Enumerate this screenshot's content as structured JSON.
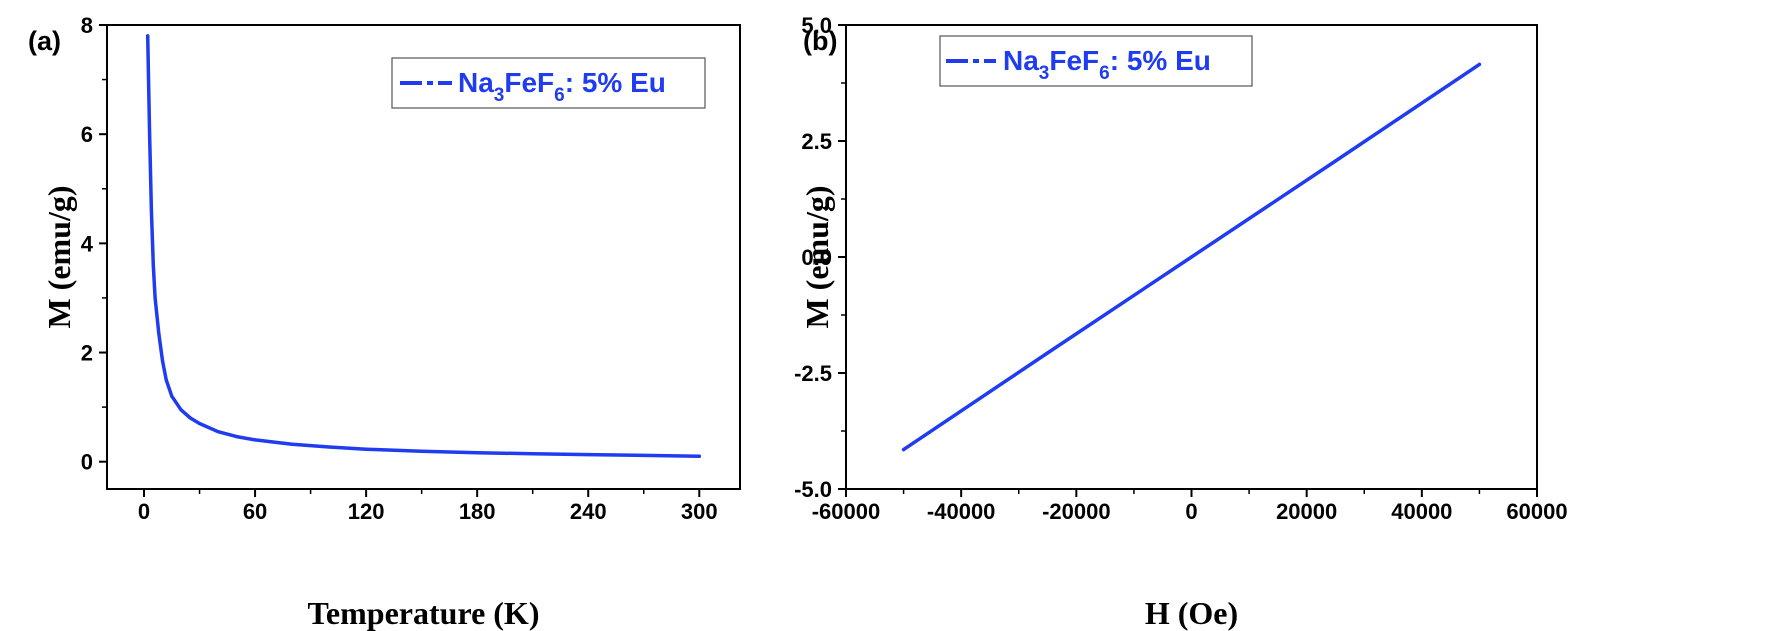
{
  "colors": {
    "series": "#1f3cf0",
    "axes": "#000000",
    "legend_border": "#555555"
  },
  "chart_data": [
    {
      "type": "line",
      "panel_label": "(a)",
      "xlabel": "Temperature (K)",
      "ylabel": "M (emu/g)",
      "xlim": [
        -20,
        322
      ],
      "ylim": [
        -0.5,
        8
      ],
      "xticks": [
        0,
        60,
        120,
        180,
        240,
        300
      ],
      "xtick_labels": [
        "0",
        "60",
        "120",
        "180",
        "240",
        "300"
      ],
      "yticks": [
        0,
        2,
        4,
        6,
        8
      ],
      "ytick_labels": [
        "0",
        "2",
        "4",
        "6",
        "8"
      ],
      "legend_position": "top-right",
      "legend": {
        "prefix": "Na",
        "sub1": "3",
        "mid": "FeF",
        "sub2": "6",
        "suffix": ": 5% Eu"
      },
      "series": [
        {
          "name": "Na3FeF6: 5% Eu",
          "x": [
            2,
            3,
            4,
            5,
            6,
            8,
            10,
            12,
            15,
            20,
            25,
            30,
            40,
            50,
            60,
            80,
            100,
            120,
            150,
            180,
            210,
            240,
            270,
            300
          ],
          "y": [
            7.8,
            6.0,
            4.6,
            3.6,
            3.0,
            2.35,
            1.85,
            1.5,
            1.2,
            0.95,
            0.8,
            0.7,
            0.55,
            0.46,
            0.4,
            0.32,
            0.27,
            0.23,
            0.19,
            0.165,
            0.145,
            0.13,
            0.115,
            0.1
          ]
        }
      ]
    },
    {
      "type": "line",
      "panel_label": "(b)",
      "xlabel": "H (Oe)",
      "ylabel": "M (emu/g)",
      "xlim": [
        -60000,
        60000
      ],
      "ylim": [
        -5.0,
        5.0
      ],
      "xticks": [
        -60000,
        -40000,
        -20000,
        0,
        20000,
        40000,
        60000
      ],
      "xtick_labels": [
        "-60000",
        "-40000",
        "-20000",
        "0",
        "20000",
        "40000",
        "60000"
      ],
      "yticks": [
        -5.0,
        -2.5,
        0.0,
        2.5,
        5.0
      ],
      "ytick_labels": [
        "-5.0",
        "-2.5",
        "0.0",
        "2.5",
        "5.0"
      ],
      "legend_position": "top-left",
      "legend": {
        "prefix": "Na",
        "sub1": "3",
        "mid": "FeF",
        "sub2": "6",
        "suffix": ":  5% Eu"
      },
      "series": [
        {
          "name": "Na3FeF6: 5% Eu",
          "x": [
            -50000,
            -25000,
            0,
            25000,
            50000
          ],
          "y": [
            -4.15,
            -2.07,
            0.0,
            2.07,
            4.15
          ]
        }
      ]
    }
  ]
}
